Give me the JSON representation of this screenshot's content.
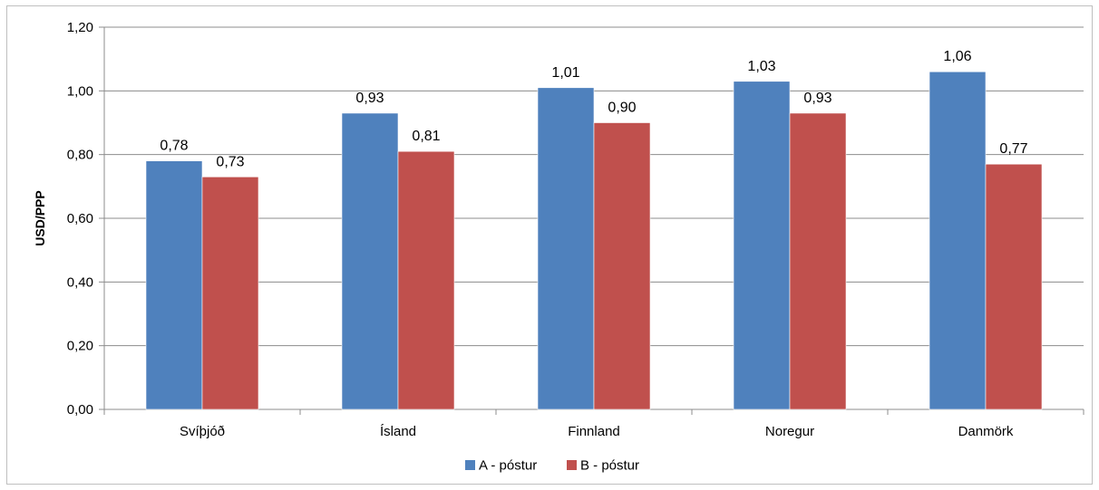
{
  "chart_data": {
    "type": "bar",
    "categories": [
      "Svíþjóð",
      "Ísland",
      "Finnland",
      "Noregur",
      "Danmörk"
    ],
    "series": [
      {
        "name": "A - póstur",
        "values": [
          0.78,
          0.93,
          1.01,
          1.03,
          1.06
        ],
        "labels": [
          "0,78",
          "0,93",
          "1,01",
          "1,03",
          "1,06"
        ],
        "color": "#4f81bd"
      },
      {
        "name": "B - póstur",
        "values": [
          0.73,
          0.81,
          0.9,
          0.93,
          0.77
        ],
        "labels": [
          "0,73",
          "0,81",
          "0,90",
          "0,93",
          "0,77"
        ],
        "color": "#c0504d"
      }
    ],
    "ylabel": "USD/PPP",
    "xlabel": "",
    "ylim": [
      0,
      1.2
    ],
    "yticks": [
      0,
      0.2,
      0.4,
      0.6,
      0.8,
      1.0,
      1.2
    ],
    "ytick_labels": [
      "0,00",
      "0,20",
      "0,40",
      "0,60",
      "0,80",
      "1,00",
      "1,20"
    ],
    "grid": true,
    "legend_position": "bottom"
  }
}
